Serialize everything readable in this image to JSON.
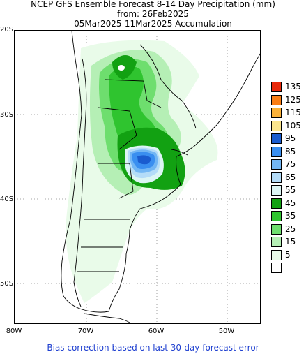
{
  "title": {
    "line1": "NCEP GFS Ensemble Forecast 8-14 Day Precipitation (mm)",
    "line2": "from: 26Feb2025",
    "line3": "05Mar2025-11Mar2025 Accumulation"
  },
  "axes": {
    "lat_labels": [
      "20S",
      "30S",
      "40S",
      "50S"
    ],
    "lon_labels": [
      "80W",
      "70W",
      "60W",
      "50W"
    ]
  },
  "legend": {
    "items": [
      {
        "label": "135",
        "color": "#e8290b"
      },
      {
        "label": "125",
        "color": "#fa7e15"
      },
      {
        "label": "115",
        "color": "#fbb23a"
      },
      {
        "label": "105",
        "color": "#fbe58d"
      },
      {
        "label": "95",
        "color": "#1a5ccf"
      },
      {
        "label": "85",
        "color": "#3a8ff0"
      },
      {
        "label": "75",
        "color": "#72b6f4"
      },
      {
        "label": "65",
        "color": "#b4dcf8"
      },
      {
        "label": "55",
        "color": "#dcf5f4"
      },
      {
        "label": "45",
        "color": "#12a112"
      },
      {
        "label": "35",
        "color": "#2fc42f"
      },
      {
        "label": "25",
        "color": "#6ede6e"
      },
      {
        "label": "15",
        "color": "#b5efb5"
      },
      {
        "label": "5",
        "color": "#e9fbe9"
      },
      {
        "label": "",
        "color": "#ffffff"
      }
    ]
  },
  "footer": "Bias correction based on last 30-day forecast error"
}
